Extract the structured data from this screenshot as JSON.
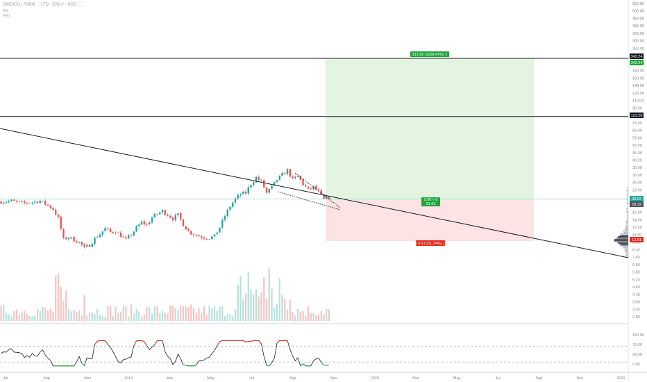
{
  "header": {
    "title": "DINDIGUL FARM ... LTD · DAILY · NSE · ...",
    "line2": "Vol",
    "line3": "RSI"
  },
  "colors": {
    "up": "#26a69a",
    "down": "#ef5350",
    "target_zone": "#e3f4e1",
    "stop_zone": "#fde3e3",
    "target_label": "#1ea53a",
    "stop_label": "#e8291c",
    "price_line": "#7fd3cd",
    "rsi_line": "#131722"
  },
  "chart_data": [
    {
      "type": "candlestick",
      "scale": "log",
      "x_ticks": [
        "Jul",
        "Sep",
        "Nov",
        "2019",
        "Mar",
        "May",
        "Jul",
        "Sep",
        "Nov",
        "2020",
        "Mar",
        "May",
        "Jul",
        "Sep",
        "Nov",
        "2021"
      ],
      "y_ticks": [
        "550.00",
        "500.00",
        "450.00",
        "400.00",
        "350.00",
        "300.00",
        "260.00",
        "230.00",
        "200.00",
        "180.00",
        "160.00",
        "140.00",
        "125.00",
        "110.00",
        "95.00",
        "85.00",
        "75.00",
        "65.00",
        "57.00",
        "50.00",
        "45.00",
        "40.00",
        "35.00",
        "30.00",
        "26.00",
        "23.00",
        "20.00",
        "18.00",
        "16.00",
        "14.00",
        "12.50",
        "11.00",
        "9.60",
        "8.40",
        "7.40",
        "6.60",
        "5.80",
        "5.20",
        "4.60",
        "4.10",
        "3.60",
        "3.20",
        "2.80"
      ],
      "close_path": [
        [
          0,
          27.6
        ],
        [
          4,
          27.9
        ],
        [
          8,
          26.8
        ],
        [
          12,
          27.3
        ],
        [
          15,
          28.0
        ],
        [
          18,
          25.8
        ],
        [
          20,
          24.2
        ],
        [
          22,
          20.6
        ],
        [
          24,
          14.2
        ],
        [
          26,
          14.8
        ],
        [
          30,
          13.5
        ],
        [
          32,
          12.2
        ],
        [
          34,
          12.9
        ],
        [
          36,
          14.4
        ],
        [
          38,
          15.6
        ],
        [
          40,
          17.2
        ],
        [
          42,
          16.1
        ],
        [
          44,
          16.4
        ],
        [
          46,
          15.2
        ],
        [
          48,
          14.1
        ],
        [
          50,
          15.5
        ],
        [
          52,
          17.4
        ],
        [
          54,
          19.2
        ],
        [
          56,
          18.3
        ],
        [
          58,
          20.9
        ],
        [
          60,
          22.2
        ],
        [
          62,
          23.4
        ],
        [
          64,
          21.9
        ],
        [
          66,
          20.5
        ],
        [
          68,
          21.8
        ],
        [
          70,
          18.5
        ],
        [
          72,
          16.3
        ],
        [
          74,
          15.6
        ],
        [
          76,
          15.1
        ],
        [
          78,
          14.7
        ],
        [
          80,
          14.6
        ],
        [
          82,
          15.0
        ],
        [
          84,
          17.6
        ],
        [
          86,
          21.5
        ],
        [
          88,
          25.5
        ],
        [
          90,
          28.9
        ],
        [
          92,
          31.5
        ],
        [
          94,
          32.2
        ],
        [
          96,
          37.8
        ],
        [
          98,
          42.1
        ],
        [
          100,
          39.2
        ],
        [
          102,
          32.1
        ],
        [
          104,
          35.5
        ],
        [
          106,
          40.6
        ],
        [
          108,
          44.2
        ],
        [
          110,
          47.8
        ],
        [
          112,
          40.5
        ],
        [
          114,
          43.2
        ],
        [
          116,
          37.5
        ],
        [
          118,
          33.8
        ],
        [
          120,
          35.6
        ],
        [
          122,
          32.9
        ],
        [
          124,
          28.4
        ],
        [
          126,
          30.1
        ]
      ],
      "horizontal_levels": [
        342.24,
        123.2
      ],
      "trendline": {
        "from": [
          -30,
          48
        ],
        "to": [
          280,
          11.4
        ]
      },
      "position_tool": {
        "entry": 28.32,
        "target": 342.24,
        "stop": 13.81,
        "target_label": "313.92 (1108.47%) 1",
        "stop_label": "14.51 (51.24%) 1",
        "ratio_label": "0.00 ÷ 0",
        "ratio_sub": "21.63"
      },
      "price_badges": [
        {
          "value": "342.24",
          "style": "dark"
        },
        {
          "value": "342.24",
          "style": "green"
        },
        {
          "value": "123.20",
          "style": "dark"
        },
        {
          "value": "28.52",
          "style": "teal"
        },
        {
          "value": "28.32",
          "style": "grey"
        },
        {
          "value": "13.81",
          "style": "red"
        }
      ]
    },
    {
      "type": "rsi",
      "y_ticks": [
        "100.00",
        "70.00",
        "30.00",
        "0.00"
      ],
      "bands": [
        70,
        30
      ],
      "ylim": [
        0,
        100
      ]
    }
  ]
}
